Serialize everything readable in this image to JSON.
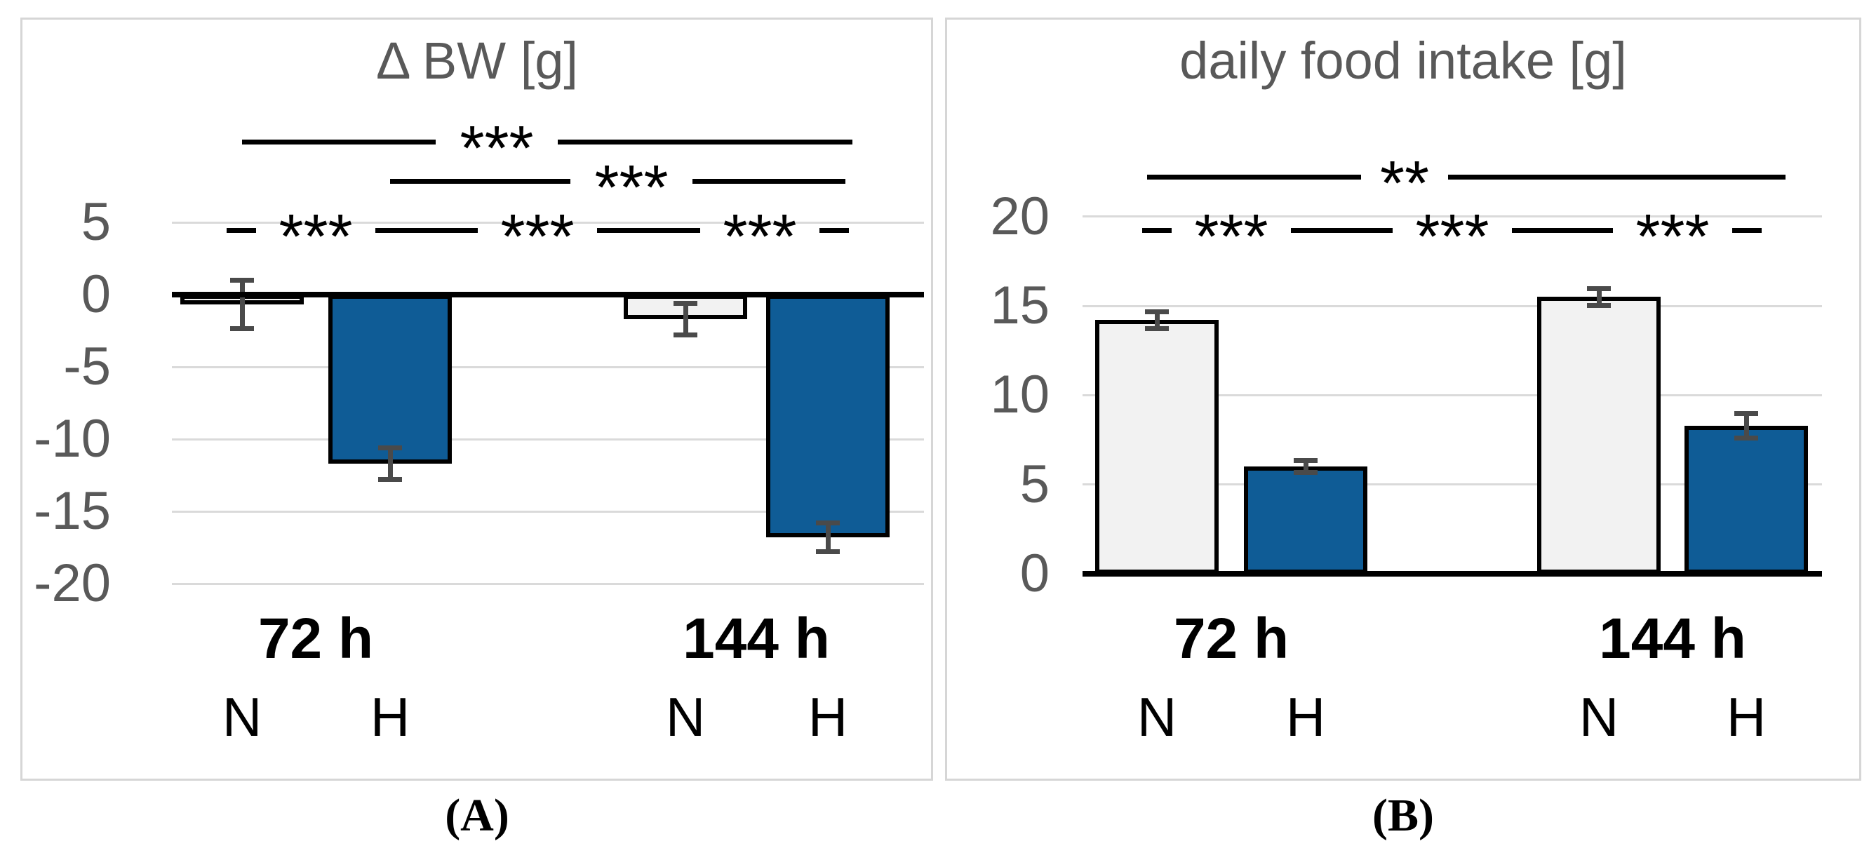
{
  "chart_data": [
    {
      "type": "bar",
      "panel": "A",
      "panel_label": "(A)",
      "title": "Δ BW [g]",
      "ylabel": "",
      "ylim": [
        -20,
        5
      ],
      "yticks": [
        5,
        0,
        -5,
        -10,
        -15,
        -20
      ],
      "grid": true,
      "groups": [
        "72 h",
        "144 h"
      ],
      "series_names": [
        "N",
        "H"
      ],
      "bars": [
        {
          "group": "72 h",
          "series": "N",
          "value": -0.7,
          "error": 1.7,
          "fill": "#F2F2F2"
        },
        {
          "group": "72 h",
          "series": "H",
          "value": -11.7,
          "error": 1.1,
          "fill": "#0F5C96"
        },
        {
          "group": "144 h",
          "series": "N",
          "value": -1.7,
          "error": 1.1,
          "fill": "#F2F2F2"
        },
        {
          "group": "144 h",
          "series": "H",
          "value": -16.8,
          "error": 1.0,
          "fill": "#0F5C96"
        }
      ],
      "significance": [
        {
          "comparison": "72h-N vs 144h-H",
          "label": "***"
        },
        {
          "comparison": "72h-H vs 144h-H",
          "label": "***"
        },
        {
          "comparison": "72h-N vs 72h-H",
          "label": "***"
        },
        {
          "comparison": "72h-H vs 144h-N",
          "label": "***"
        },
        {
          "comparison": "144h-N vs 144h-H",
          "label": "***"
        }
      ]
    },
    {
      "type": "bar",
      "panel": "B",
      "panel_label": "(B)",
      "title": "daily food intake [g]",
      "ylabel": "",
      "ylim": [
        0,
        20
      ],
      "yticks": [
        20,
        15,
        10,
        5,
        0
      ],
      "grid": true,
      "groups": [
        "72 h",
        "144 h"
      ],
      "series_names": [
        "N",
        "H"
      ],
      "bars": [
        {
          "group": "72 h",
          "series": "N",
          "value": 14.2,
          "error": 0.5,
          "fill": "#F2F2F2"
        },
        {
          "group": "72 h",
          "series": "H",
          "value": 6.0,
          "error": 0.35,
          "fill": "#0F5C96"
        },
        {
          "group": "144 h",
          "series": "N",
          "value": 15.5,
          "error": 0.5,
          "fill": "#F2F2F2"
        },
        {
          "group": "144 h",
          "series": "H",
          "value": 8.3,
          "error": 0.7,
          "fill": "#0F5C96"
        }
      ],
      "significance": [
        {
          "comparison": "72h-N vs 144h-H",
          "label": "**"
        },
        {
          "comparison": "72h-N vs 72h-H",
          "label": "***"
        },
        {
          "comparison": "72h-H vs 144h-N",
          "label": "***"
        },
        {
          "comparison": "144h-N vs 144h-H",
          "label": "***"
        }
      ]
    }
  ],
  "colors": {
    "bar_n_fill": "#F2F2F2",
    "bar_h_fill": "#0F5C96",
    "bar_border": "#000000",
    "axis": "#000000",
    "gridline": "#DADADA",
    "error_bar": "#4A4A4A",
    "title_text": "#595959",
    "tick_text": "#595959",
    "panel_border": "#D6D6D6"
  }
}
